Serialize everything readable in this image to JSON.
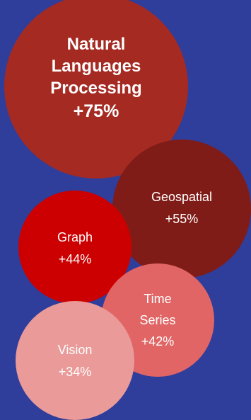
{
  "chart_data": {
    "type": "bubble",
    "series": [
      {
        "name": "Natural Languages Processing",
        "label_lines": [
          "Natural",
          "Languages",
          "Processing"
        ],
        "value": 75,
        "value_label": "+75%",
        "color": "#a52a22"
      },
      {
        "name": "Geospatial",
        "label_lines": [
          "Geospatial"
        ],
        "value": 55,
        "value_label": "+55%",
        "color": "#801c17"
      },
      {
        "name": "Graph",
        "label_lines": [
          "Graph"
        ],
        "value": 44,
        "value_label": "+44%",
        "color": "#cc0000"
      },
      {
        "name": "Time Series",
        "label_lines": [
          "Time",
          "Series"
        ],
        "value": 42,
        "value_label": "+42%",
        "color": "#e16565"
      },
      {
        "name": "Vision",
        "label_lines": [
          "Vision"
        ],
        "value": 34,
        "value_label": "+34%",
        "color": "#e99a99"
      }
    ]
  }
}
